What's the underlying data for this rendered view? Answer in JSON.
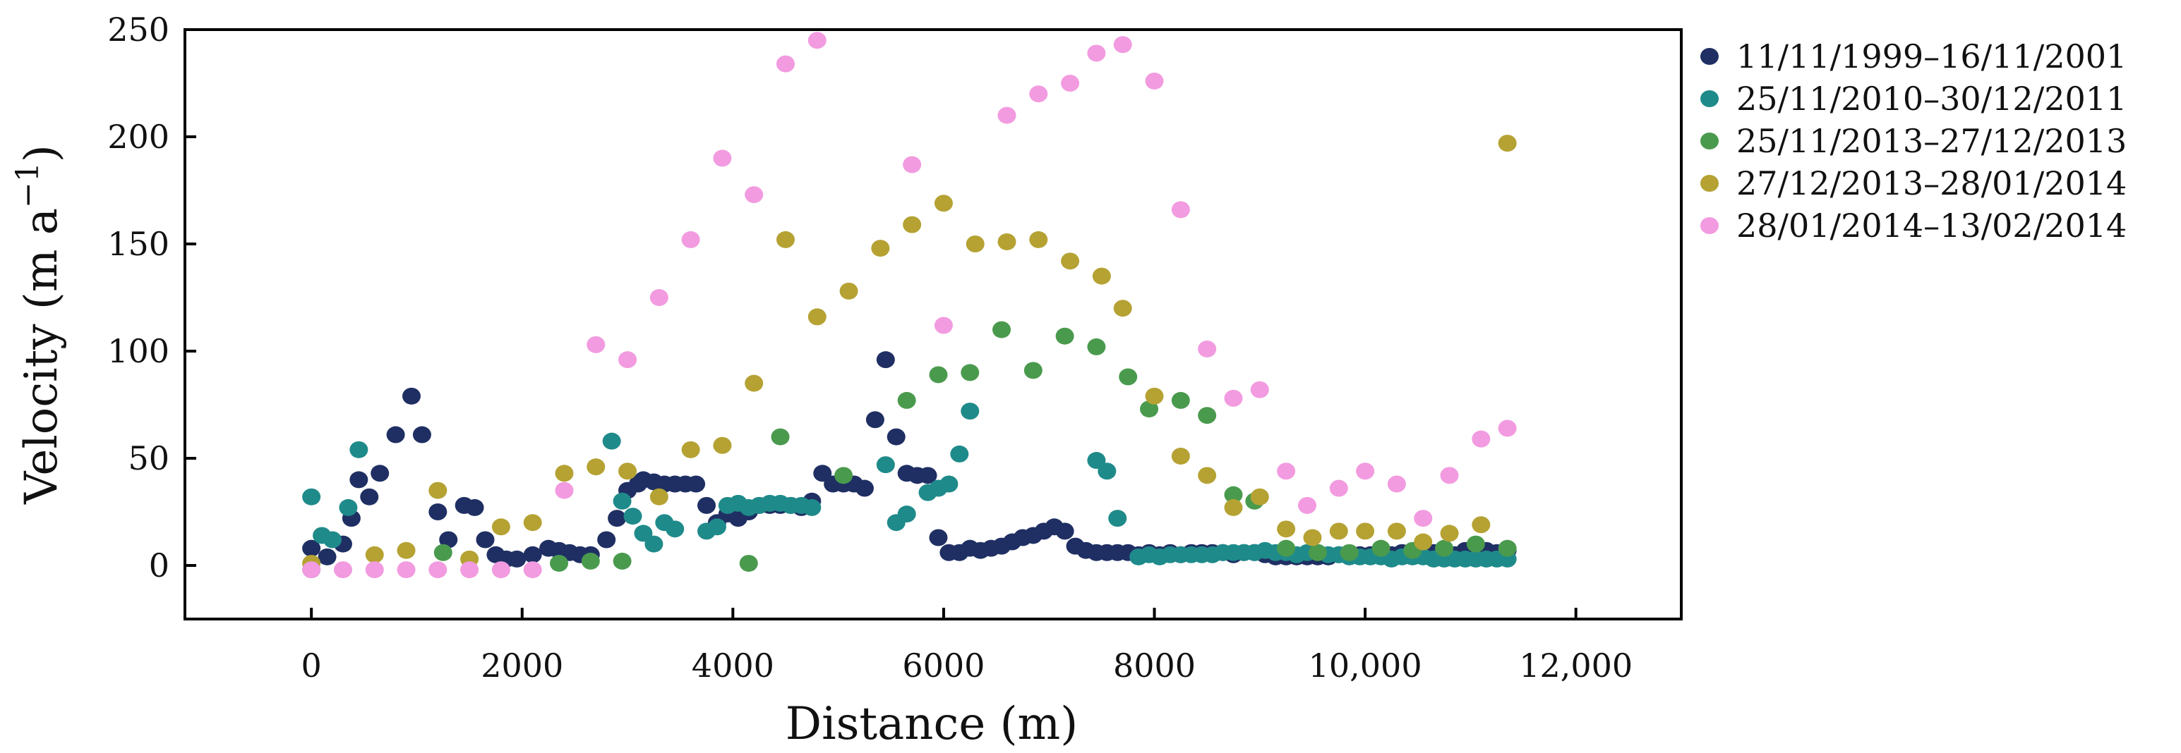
{
  "chart_data": {
    "type": "scatter",
    "title": "",
    "xlabel": "Distance (m)",
    "ylabel": "Velocity (m a",
    "ylabel_sup": "−1",
    "ylabel_close": ")",
    "xlim": [
      -1200,
      13000
    ],
    "ylim": [
      -25,
      250
    ],
    "xticks": [
      0,
      2000,
      4000,
      6000,
      8000,
      10000,
      12000
    ],
    "xtick_labels": [
      "0",
      "2000",
      "4000",
      "6000",
      "8000",
      "10,000",
      "12,000"
    ],
    "yticks": [
      0,
      50,
      100,
      150,
      200,
      250
    ],
    "ytick_labels": [
      "0",
      "50",
      "100",
      "150",
      "200",
      "250"
    ],
    "legend_position": "right",
    "series": [
      {
        "name": "11/11/1999–16/11/2001",
        "color": "#1f2f63",
        "points": [
          [
            0,
            8
          ],
          [
            150,
            4
          ],
          [
            300,
            10
          ],
          [
            380,
            22
          ],
          [
            450,
            40
          ],
          [
            550,
            32
          ],
          [
            650,
            43
          ],
          [
            800,
            61
          ],
          [
            950,
            79
          ],
          [
            1050,
            61
          ],
          [
            1200,
            25
          ],
          [
            1300,
            12
          ],
          [
            1450,
            28
          ],
          [
            1550,
            27
          ],
          [
            1650,
            12
          ],
          [
            1750,
            5
          ],
          [
            1850,
            3
          ],
          [
            1950,
            3
          ],
          [
            2100,
            5
          ],
          [
            2250,
            8
          ],
          [
            2350,
            7
          ],
          [
            2450,
            6
          ],
          [
            2550,
            5
          ],
          [
            2650,
            5
          ],
          [
            2800,
            12
          ],
          [
            2900,
            22
          ],
          [
            3000,
            35
          ],
          [
            3100,
            38
          ],
          [
            3150,
            40
          ],
          [
            3250,
            39
          ],
          [
            3350,
            38
          ],
          [
            3450,
            38
          ],
          [
            3550,
            38
          ],
          [
            3650,
            38
          ],
          [
            3750,
            28
          ],
          [
            3850,
            20
          ],
          [
            3950,
            24
          ],
          [
            4050,
            22
          ],
          [
            4150,
            25
          ],
          [
            4250,
            28
          ],
          [
            4350,
            28
          ],
          [
            4450,
            28
          ],
          [
            4550,
            28
          ],
          [
            4650,
            27
          ],
          [
            4750,
            30
          ],
          [
            4850,
            43
          ],
          [
            4950,
            38
          ],
          [
            5050,
            38
          ],
          [
            5150,
            38
          ],
          [
            5250,
            36
          ],
          [
            5350,
            68
          ],
          [
            5450,
            96
          ],
          [
            5550,
            60
          ],
          [
            5650,
            43
          ],
          [
            5750,
            42
          ],
          [
            5850,
            42
          ],
          [
            5950,
            13
          ],
          [
            6050,
            6
          ],
          [
            6150,
            6
          ],
          [
            6250,
            8
          ],
          [
            6350,
            7
          ],
          [
            6450,
            8
          ],
          [
            6550,
            9
          ],
          [
            6650,
            11
          ],
          [
            6750,
            13
          ],
          [
            6850,
            14
          ],
          [
            6950,
            16
          ],
          [
            7050,
            18
          ],
          [
            7150,
            16
          ],
          [
            7250,
            9
          ],
          [
            7350,
            7
          ],
          [
            7450,
            6
          ],
          [
            7550,
            6
          ],
          [
            7650,
            6
          ],
          [
            7750,
            6
          ],
          [
            7850,
            5
          ],
          [
            7950,
            6
          ],
          [
            8050,
            5
          ],
          [
            8150,
            6
          ],
          [
            8250,
            5
          ],
          [
            8350,
            6
          ],
          [
            8450,
            6
          ],
          [
            8550,
            6
          ],
          [
            8650,
            6
          ],
          [
            8750,
            5
          ],
          [
            8850,
            6
          ],
          [
            8950,
            6
          ],
          [
            9050,
            5
          ],
          [
            9150,
            4
          ],
          [
            9250,
            4
          ],
          [
            9350,
            4
          ],
          [
            9450,
            4
          ],
          [
            9550,
            4
          ],
          [
            9650,
            4
          ],
          [
            9750,
            5
          ],
          [
            9850,
            5
          ],
          [
            9950,
            5
          ],
          [
            10050,
            5
          ],
          [
            10150,
            6
          ],
          [
            10250,
            5
          ],
          [
            10350,
            6
          ],
          [
            10450,
            5
          ],
          [
            10550,
            6
          ],
          [
            10650,
            6
          ],
          [
            10750,
            6
          ],
          [
            10850,
            5
          ],
          [
            10950,
            7
          ],
          [
            11050,
            6
          ],
          [
            11150,
            7
          ],
          [
            11250,
            6
          ],
          [
            11350,
            7
          ]
        ]
      },
      {
        "name": "25/11/2010–30/12/2011",
        "color": "#1f8a8a",
        "points": [
          [
            0,
            32
          ],
          [
            100,
            14
          ],
          [
            200,
            12
          ],
          [
            350,
            27
          ],
          [
            450,
            54
          ],
          [
            2850,
            58
          ],
          [
            2950,
            30
          ],
          [
            3050,
            23
          ],
          [
            3150,
            15
          ],
          [
            3250,
            10
          ],
          [
            3350,
            20
          ],
          [
            3450,
            17
          ],
          [
            3750,
            16
          ],
          [
            3850,
            18
          ],
          [
            3950,
            28
          ],
          [
            4050,
            29
          ],
          [
            4150,
            27
          ],
          [
            4250,
            28
          ],
          [
            4350,
            29
          ],
          [
            4450,
            29
          ],
          [
            4550,
            28
          ],
          [
            4650,
            28
          ],
          [
            4750,
            27
          ],
          [
            5450,
            47
          ],
          [
            5550,
            20
          ],
          [
            5650,
            24
          ],
          [
            5850,
            34
          ],
          [
            5950,
            36
          ],
          [
            6050,
            38
          ],
          [
            6150,
            52
          ],
          [
            6250,
            72
          ],
          [
            7450,
            49
          ],
          [
            7550,
            44
          ],
          [
            7650,
            22
          ],
          [
            7850,
            4
          ],
          [
            7950,
            5
          ],
          [
            8050,
            4
          ],
          [
            8150,
            5
          ],
          [
            8250,
            5
          ],
          [
            8350,
            5
          ],
          [
            8450,
            5
          ],
          [
            8550,
            5
          ],
          [
            8650,
            6
          ],
          [
            8750,
            6
          ],
          [
            8850,
            6
          ],
          [
            8950,
            6
          ],
          [
            9050,
            7
          ],
          [
            9150,
            6
          ],
          [
            9250,
            6
          ],
          [
            9350,
            5
          ],
          [
            9450,
            6
          ],
          [
            9550,
            6
          ],
          [
            9650,
            5
          ],
          [
            9750,
            5
          ],
          [
            9850,
            4
          ],
          [
            9950,
            4
          ],
          [
            10050,
            4
          ],
          [
            10150,
            4
          ],
          [
            10250,
            3
          ],
          [
            10350,
            4
          ],
          [
            10450,
            4
          ],
          [
            10550,
            4
          ],
          [
            10650,
            3
          ],
          [
            10750,
            3
          ],
          [
            10850,
            3
          ],
          [
            10950,
            3
          ],
          [
            11050,
            3
          ],
          [
            11150,
            3
          ],
          [
            11250,
            3
          ],
          [
            11350,
            3
          ]
        ]
      },
      {
        "name": "25/11/2013–27/12/2013",
        "color": "#4a9a4e",
        "points": [
          [
            0,
            -2
          ],
          [
            1250,
            6
          ],
          [
            2350,
            1
          ],
          [
            2650,
            2
          ],
          [
            2950,
            2
          ],
          [
            4150,
            1
          ],
          [
            4450,
            60
          ],
          [
            5050,
            42
          ],
          [
            5650,
            77
          ],
          [
            5950,
            89
          ],
          [
            6250,
            90
          ],
          [
            6550,
            110
          ],
          [
            6850,
            91
          ],
          [
            7150,
            107
          ],
          [
            7450,
            102
          ],
          [
            7750,
            88
          ],
          [
            7950,
            73
          ],
          [
            8250,
            77
          ],
          [
            8500,
            70
          ],
          [
            8750,
            33
          ],
          [
            8950,
            30
          ],
          [
            9250,
            8
          ],
          [
            9550,
            6
          ],
          [
            9850,
            6
          ],
          [
            10150,
            8
          ],
          [
            10450,
            7
          ],
          [
            10750,
            8
          ],
          [
            11050,
            10
          ],
          [
            11350,
            8
          ]
        ]
      },
      {
        "name": "27/12/2013–28/01/2014",
        "color": "#b5a233",
        "points": [
          [
            0,
            1
          ],
          [
            600,
            5
          ],
          [
            900,
            7
          ],
          [
            1200,
            35
          ],
          [
            1500,
            3
          ],
          [
            1800,
            18
          ],
          [
            2100,
            20
          ],
          [
            2400,
            43
          ],
          [
            2700,
            46
          ],
          [
            3000,
            44
          ],
          [
            3300,
            32
          ],
          [
            3600,
            54
          ],
          [
            3900,
            56
          ],
          [
            4200,
            85
          ],
          [
            4500,
            152
          ],
          [
            4800,
            116
          ],
          [
            5100,
            128
          ],
          [
            5400,
            148
          ],
          [
            5700,
            159
          ],
          [
            6000,
            169
          ],
          [
            6300,
            150
          ],
          [
            6600,
            151
          ],
          [
            6900,
            152
          ],
          [
            7200,
            142
          ],
          [
            7500,
            135
          ],
          [
            7700,
            120
          ],
          [
            8000,
            79
          ],
          [
            8250,
            51
          ],
          [
            8500,
            42
          ],
          [
            8750,
            27
          ],
          [
            9000,
            32
          ],
          [
            9250,
            17
          ],
          [
            9500,
            13
          ],
          [
            9750,
            16
          ],
          [
            10000,
            16
          ],
          [
            10300,
            16
          ],
          [
            10550,
            11
          ],
          [
            10800,
            15
          ],
          [
            11100,
            19
          ],
          [
            11350,
            197
          ]
        ]
      },
      {
        "name": "28/01/2014–13/02/2014",
        "color": "#f29be0",
        "points": [
          [
            0,
            -2
          ],
          [
            300,
            -2
          ],
          [
            600,
            -2
          ],
          [
            900,
            -2
          ],
          [
            1200,
            -2
          ],
          [
            1500,
            -2
          ],
          [
            1800,
            -2
          ],
          [
            2100,
            -2
          ],
          [
            2400,
            35
          ],
          [
            2700,
            103
          ],
          [
            3000,
            96
          ],
          [
            3300,
            125
          ],
          [
            3600,
            152
          ],
          [
            3900,
            190
          ],
          [
            4200,
            173
          ],
          [
            4500,
            234
          ],
          [
            4800,
            245
          ],
          [
            5700,
            187
          ],
          [
            6000,
            112
          ],
          [
            6600,
            210
          ],
          [
            6900,
            220
          ],
          [
            7200,
            225
          ],
          [
            7450,
            239
          ],
          [
            7700,
            243
          ],
          [
            8000,
            226
          ],
          [
            8250,
            166
          ],
          [
            8500,
            101
          ],
          [
            8750,
            78
          ],
          [
            9000,
            82
          ],
          [
            9250,
            44
          ],
          [
            9450,
            28
          ],
          [
            9750,
            36
          ],
          [
            10000,
            44
          ],
          [
            10300,
            38
          ],
          [
            10550,
            22
          ],
          [
            10800,
            42
          ],
          [
            11100,
            59
          ],
          [
            11350,
            64
          ]
        ]
      }
    ]
  }
}
